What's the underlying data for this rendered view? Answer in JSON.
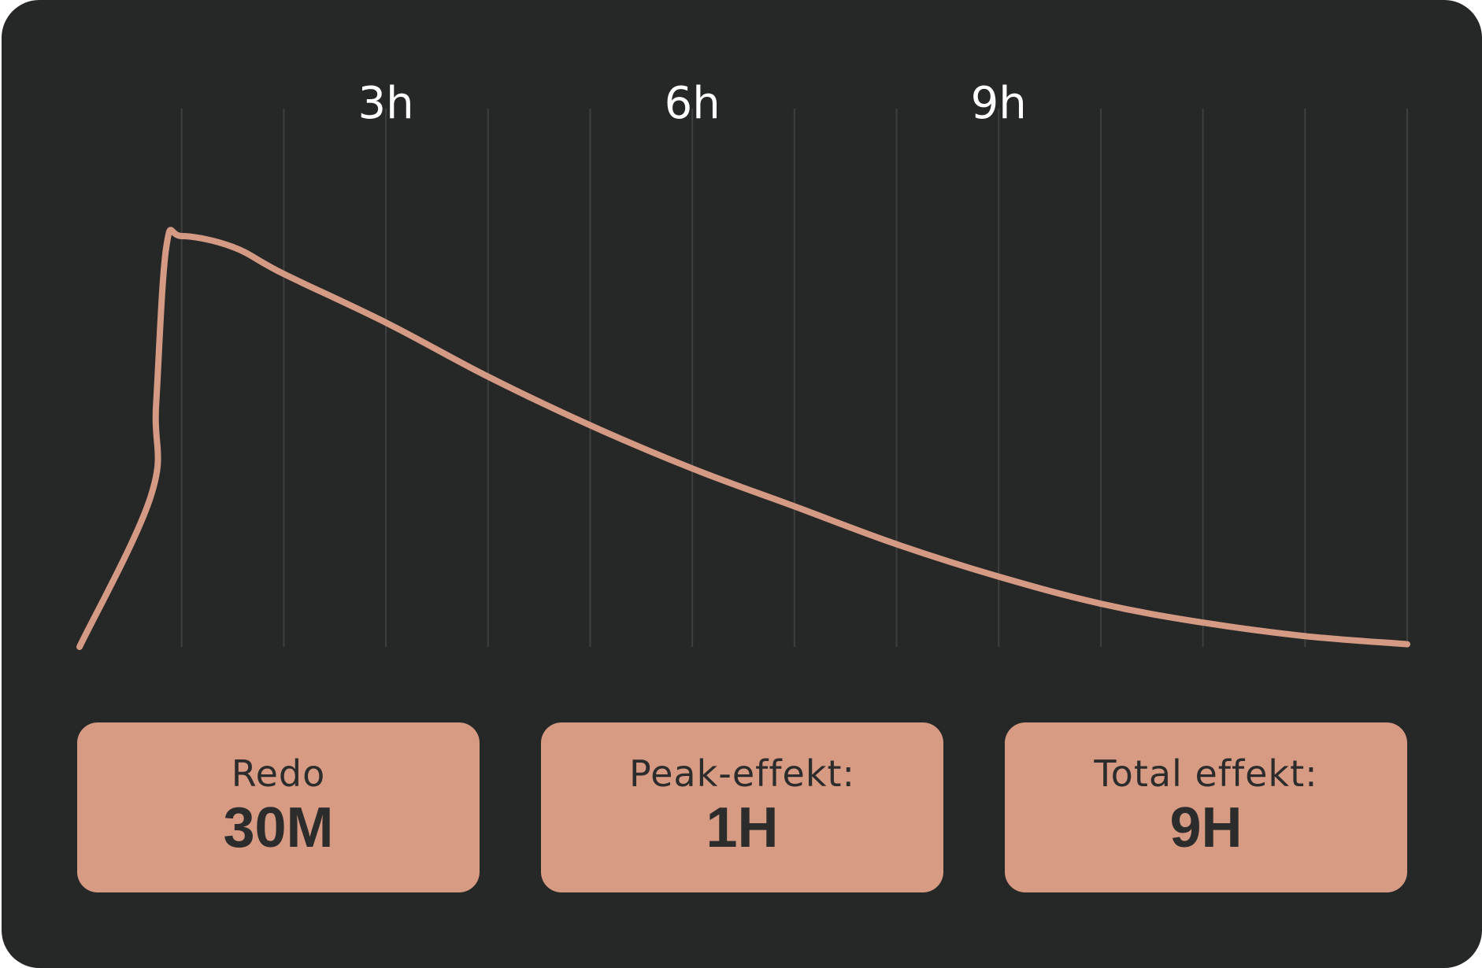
{
  "colors": {
    "background": "#262727",
    "accent": "#d79b84",
    "curve": "#d49a84",
    "grid": "#3e3f3f",
    "text_light": "#ffffff",
    "text_dark": "#2c2c2c"
  },
  "chart_data": {
    "type": "line",
    "x_unit": "h",
    "xlim": [
      0,
      13
    ],
    "tick_labels": [
      {
        "x": 3,
        "label": "3h"
      },
      {
        "x": 6,
        "label": "6h"
      },
      {
        "x": 9,
        "label": "9h"
      }
    ],
    "gridlines_x": [
      1,
      2,
      3,
      4,
      5,
      6,
      7,
      8,
      9,
      10,
      11,
      12,
      13
    ],
    "ylim": [
      0,
      1
    ],
    "grid": true,
    "series": [
      {
        "x": [
          0,
          0.7,
          0.75,
          0.85,
          1.0,
          1.5,
          2.0,
          3.0,
          4.0,
          5.0,
          6.0,
          7.0,
          8.0,
          9.0,
          10.0,
          11.0,
          12.0,
          13.0
        ],
        "y": [
          0,
          0.28,
          0.45,
          0.74,
          0.76,
          0.74,
          0.69,
          0.6,
          0.5,
          0.41,
          0.33,
          0.26,
          0.19,
          0.13,
          0.08,
          0.045,
          0.02,
          0.005
        ]
      }
    ]
  },
  "stats": [
    {
      "label": "Redo",
      "value": "30M"
    },
    {
      "label": "Peak-effekt:",
      "value": "1H"
    },
    {
      "label": "Total effekt:",
      "value": "9H"
    }
  ]
}
